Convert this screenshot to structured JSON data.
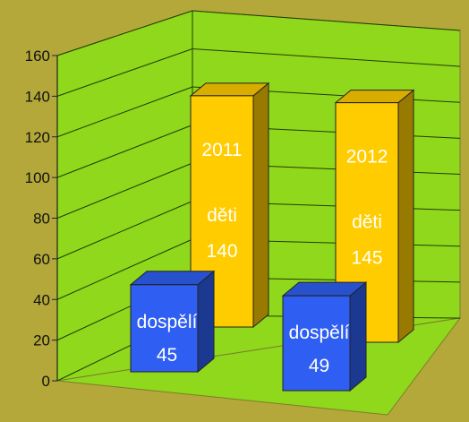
{
  "chart_data": {
    "type": "bar",
    "title": "",
    "xlabel": "",
    "ylabel": "",
    "ylim": [
      0,
      160
    ],
    "yticks": [
      "0",
      "20",
      "40",
      "60",
      "80",
      "100",
      "120",
      "140",
      "160"
    ],
    "grid": true,
    "legend": "none",
    "categories": [
      "2011",
      "2012"
    ],
    "series": [
      {
        "values": [
          45,
          49
        ],
        "labels": [
          "dospělí",
          "dospělí"
        ],
        "value_labels": [
          "45",
          "49"
        ],
        "color": "#2f5ff2"
      },
      {
        "values": [
          140,
          145
        ],
        "labels": [
          "děti",
          "děti"
        ],
        "value_labels": [
          "140",
          "145"
        ],
        "color": "#ffcc00"
      }
    ],
    "colors": {
      "background": "#b4a83a",
      "plot_area": "#8fd81c",
      "gridline": "#1f3d05"
    }
  }
}
